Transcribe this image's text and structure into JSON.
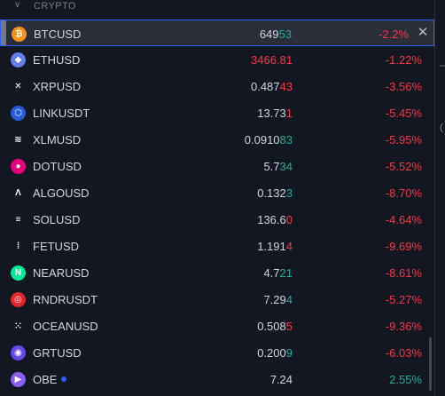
{
  "section": {
    "title": "CRYPTO"
  },
  "rows": [
    {
      "symbol": "BTCUSD",
      "price_a": "649",
      "price_b": "53",
      "price_a_color": "plain",
      "price_b_color": "pos",
      "change": "-2.2%",
      "change_color": "neg",
      "icon": "btc-icon",
      "icon_color": "#f7931a",
      "icon_glyph": "₿",
      "selected": true
    },
    {
      "symbol": "ETHUSD",
      "price_a": "3466.81",
      "price_b": "",
      "price_a_color": "neg",
      "price_b_color": "neg",
      "change": "-1.22%",
      "change_color": "neg",
      "icon": "eth-icon",
      "icon_color": "#627eea",
      "icon_glyph": "◆"
    },
    {
      "symbol": "XRPUSD",
      "price_a": "0.487",
      "price_b": "43",
      "price_a_color": "plain",
      "price_b_color": "neg",
      "change": "-3.56%",
      "change_color": "neg",
      "icon": "xrp-icon",
      "icon_color": "#131722",
      "icon_glyph": "✕"
    },
    {
      "symbol": "LINKUSDT",
      "price_a": "13.73",
      "price_b": "1",
      "price_a_color": "plain",
      "price_b_color": "neg",
      "change": "-5.45%",
      "change_color": "neg",
      "icon": "link-icon",
      "icon_color": "#2a5ada",
      "icon_glyph": "⬡"
    },
    {
      "symbol": "XLMUSD",
      "price_a": "0.0910",
      "price_b": "83",
      "price_a_color": "plain",
      "price_b_color": "pos",
      "change": "-5.95%",
      "change_color": "neg",
      "icon": "xlm-icon",
      "icon_color": "#131722",
      "icon_glyph": "≋"
    },
    {
      "symbol": "DOTUSD",
      "price_a": "5.7",
      "price_b": "34",
      "price_a_color": "plain",
      "price_b_color": "pos",
      "change": "-5.52%",
      "change_color": "neg",
      "icon": "dot-icon",
      "icon_color": "#e6007a",
      "icon_glyph": "●"
    },
    {
      "symbol": "ALGOUSD",
      "price_a": "0.132",
      "price_b": "3",
      "price_a_color": "plain",
      "price_b_color": "pos",
      "change": "-8.70%",
      "change_color": "neg",
      "icon": "algo-icon",
      "icon_color": "#131722",
      "icon_glyph": "Λ"
    },
    {
      "symbol": "SOLUSD",
      "price_a": "136.6",
      "price_b": "0",
      "price_a_color": "plain",
      "price_b_color": "neg",
      "change": "-4.64%",
      "change_color": "neg",
      "icon": "sol-icon",
      "icon_color": "#131722",
      "icon_glyph": "≡"
    },
    {
      "symbol": "FETUSD",
      "price_a": "1.191",
      "price_b": "4",
      "price_a_color": "plain",
      "price_b_color": "neg",
      "change": "-9.69%",
      "change_color": "neg",
      "icon": "fet-icon",
      "icon_color": "#131722",
      "icon_glyph": "⁞"
    },
    {
      "symbol": "NEARUSD",
      "price_a": "4.7",
      "price_b": "21",
      "price_a_color": "plain",
      "price_b_color": "pos",
      "change": "-8.61%",
      "change_color": "neg",
      "icon": "near-icon",
      "icon_color": "#00ec97",
      "icon_glyph": "N"
    },
    {
      "symbol": "RNDRUSDT",
      "price_a": "7.29",
      "price_b": "4",
      "price_a_color": "plain",
      "price_b_color": "pos",
      "change": "-5.27%",
      "change_color": "neg",
      "icon": "rndr-icon",
      "icon_color": "#e0242b",
      "icon_glyph": "◎"
    },
    {
      "symbol": "OCEANUSD",
      "price_a": "0.508",
      "price_b": "5",
      "price_a_color": "plain",
      "price_b_color": "neg",
      "change": "-9.36%",
      "change_color": "neg",
      "icon": "ocean-icon",
      "icon_color": "#131722",
      "icon_glyph": "⁙"
    },
    {
      "symbol": "GRTUSD",
      "price_a": "0.200",
      "price_b": "9",
      "price_a_color": "plain",
      "price_b_color": "pos",
      "change": "-6.03%",
      "change_color": "neg",
      "icon": "grt-icon",
      "icon_color": "#6747ed",
      "icon_glyph": "◉"
    },
    {
      "symbol": "OBE",
      "price_a": "7.24",
      "price_b": "",
      "price_a_color": "plain",
      "price_b_color": "plain",
      "change": "2.55%",
      "change_color": "pos",
      "icon": "obe-icon",
      "icon_color": "#8a5cf6",
      "icon_glyph": "▶",
      "dot": true
    }
  ],
  "colors": {
    "background": "#131722",
    "text": "#d1d4dc",
    "negative": "#f23645",
    "positive": "#22ab94",
    "selection_border": "#2962ff"
  },
  "icons": {
    "collapse": "chevron-down-icon",
    "remove": "close-icon"
  }
}
